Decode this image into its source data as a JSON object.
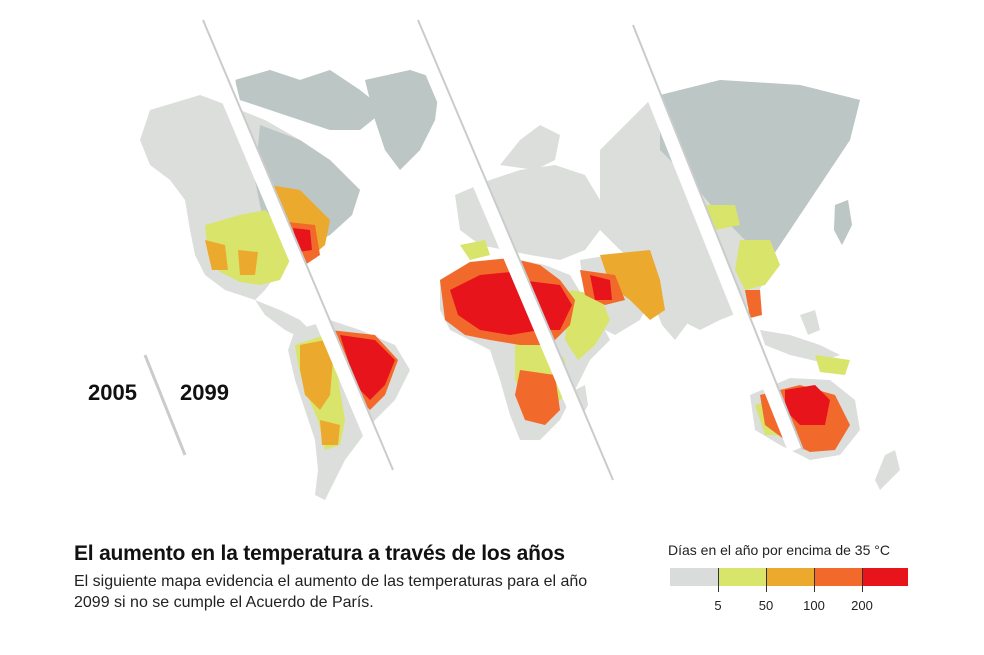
{
  "years": {
    "left": "2005",
    "right": "2099"
  },
  "title": "El aumento en la temperatura a través de los años",
  "subtitle": "El siguiente mapa evidencia el aumento de las temperaturas para el año 2099 si no se cumple el Acuerdo de París.",
  "legend": {
    "title": "Días en el año por encima de 35 °C",
    "bins": [
      {
        "color": "#d9dcda",
        "label": ""
      },
      {
        "color": "#d8e46a",
        "label": "5"
      },
      {
        "color": "#eba92e",
        "label": "50"
      },
      {
        "color": "#f26a2b",
        "label": "100"
      },
      {
        "color": "#e8141b",
        "label": "200"
      }
    ]
  },
  "colors": {
    "land_2005": "#dcdedc",
    "land_2099": "#bcc6c4",
    "ocean": "#ffffff"
  }
}
